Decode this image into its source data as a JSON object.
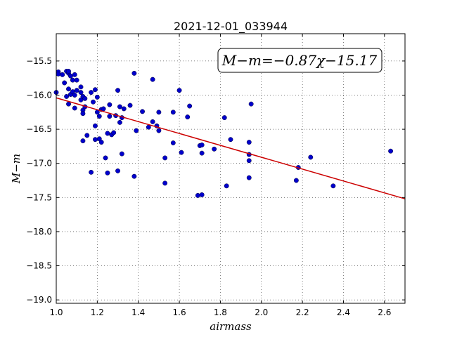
{
  "chart_data": {
    "type": "scatter",
    "title": "2021-12-01_033944",
    "xlabel": "airmass",
    "ylabel": "M−m",
    "xlim": [
      1.0,
      2.7
    ],
    "ylim": [
      -19.05,
      -15.1
    ],
    "xticks": [
      1.0,
      1.2,
      1.4,
      1.6,
      1.8,
      2.0,
      2.2,
      2.4,
      2.6
    ],
    "xtick_labels": [
      "1.0",
      "1.2",
      "1.4",
      "1.6",
      "1.8",
      "2.0",
      "2.2",
      "2.4",
      "2.6"
    ],
    "yticks": [
      -15.5,
      -16.0,
      -16.5,
      -17.0,
      -17.5,
      -18.0,
      -18.5,
      -19.0
    ],
    "ytick_labels": [
      "−15.5",
      "−16.0",
      "−16.5",
      "−17.0",
      "−17.5",
      "−18.0",
      "−18.5",
      "−19.0"
    ],
    "grid": true,
    "annotation": "M−m=−0.87χ−15.17",
    "fit": {
      "slope": -0.87,
      "intercept": -15.17,
      "color": "#cc0000"
    },
    "point_color": "#0000cc",
    "points": [
      [
        1.0,
        -15.96
      ],
      [
        1.01,
        -15.66
      ],
      [
        1.01,
        -15.69
      ],
      [
        1.03,
        -15.7
      ],
      [
        1.04,
        -15.82
      ],
      [
        1.05,
        -16.02
      ],
      [
        1.05,
        -15.65
      ],
      [
        1.06,
        -15.68
      ],
      [
        1.06,
        -15.65
      ],
      [
        1.07,
        -15.72
      ],
      [
        1.06,
        -15.91
      ],
      [
        1.07,
        -15.99
      ],
      [
        1.06,
        -16.13
      ],
      [
        1.08,
        -15.95
      ],
      [
        1.08,
        -15.78
      ],
      [
        1.09,
        -15.7
      ],
      [
        1.09,
        -16.0
      ],
      [
        1.1,
        -15.78
      ],
      [
        1.09,
        -16.19
      ],
      [
        1.1,
        -15.93
      ],
      [
        1.12,
        -15.88
      ],
      [
        1.12,
        -15.96
      ],
      [
        1.12,
        -16.07
      ],
      [
        1.13,
        -16.02
      ],
      [
        1.13,
        -16.22
      ],
      [
        1.13,
        -16.27
      ],
      [
        1.14,
        -16.05
      ],
      [
        1.14,
        -16.17
      ],
      [
        1.13,
        -16.67
      ],
      [
        1.15,
        -16.59
      ],
      [
        1.17,
        -15.96
      ],
      [
        1.18,
        -16.1
      ],
      [
        1.19,
        -15.92
      ],
      [
        1.2,
        -16.03
      ],
      [
        1.17,
        -17.13
      ],
      [
        1.19,
        -16.45
      ],
      [
        1.19,
        -16.65
      ],
      [
        1.2,
        -16.25
      ],
      [
        1.21,
        -16.31
      ],
      [
        1.21,
        -16.64
      ],
      [
        1.22,
        -16.69
      ],
      [
        1.22,
        -16.21
      ],
      [
        1.23,
        -16.2
      ],
      [
        1.24,
        -16.92
      ],
      [
        1.25,
        -17.14
      ],
      [
        1.25,
        -16.56
      ],
      [
        1.26,
        -16.14
      ],
      [
        1.26,
        -16.31
      ],
      [
        1.27,
        -16.58
      ],
      [
        1.28,
        -16.55
      ],
      [
        1.3,
        -15.93
      ],
      [
        1.29,
        -16.3
      ],
      [
        1.31,
        -16.17
      ],
      [
        1.31,
        -16.4
      ],
      [
        1.32,
        -16.33
      ],
      [
        1.33,
        -16.2
      ],
      [
        1.32,
        -16.86
      ],
      [
        1.3,
        -17.11
      ],
      [
        1.36,
        -16.15
      ],
      [
        1.38,
        -15.68
      ],
      [
        1.38,
        -17.19
      ],
      [
        1.39,
        -16.52
      ],
      [
        1.42,
        -16.24
      ],
      [
        1.45,
        -16.47
      ],
      [
        1.47,
        -15.77
      ],
      [
        1.47,
        -16.39
      ],
      [
        1.49,
        -16.45
      ],
      [
        1.5,
        -16.52
      ],
      [
        1.5,
        -16.25
      ],
      [
        1.53,
        -16.92
      ],
      [
        1.53,
        -17.29
      ],
      [
        1.57,
        -16.25
      ],
      [
        1.57,
        -16.7
      ],
      [
        1.6,
        -15.93
      ],
      [
        1.61,
        -16.84
      ],
      [
        1.64,
        -16.32
      ],
      [
        1.65,
        -16.16
      ],
      [
        1.69,
        -17.47
      ],
      [
        1.7,
        -16.74
      ],
      [
        1.71,
        -16.85
      ],
      [
        1.71,
        -16.73
      ],
      [
        1.71,
        -17.46
      ],
      [
        1.77,
        -16.79
      ],
      [
        1.82,
        -16.33
      ],
      [
        1.83,
        -17.33
      ],
      [
        1.85,
        -16.65
      ],
      [
        1.94,
        -16.87
      ],
      [
        1.94,
        -16.69
      ],
      [
        1.94,
        -16.96
      ],
      [
        1.94,
        -17.21
      ],
      [
        1.95,
        -16.13
      ],
      [
        2.17,
        -17.25
      ],
      [
        2.18,
        -17.06
      ],
      [
        2.24,
        -16.91
      ],
      [
        2.35,
        -17.33
      ],
      [
        2.63,
        -16.82
      ]
    ]
  }
}
